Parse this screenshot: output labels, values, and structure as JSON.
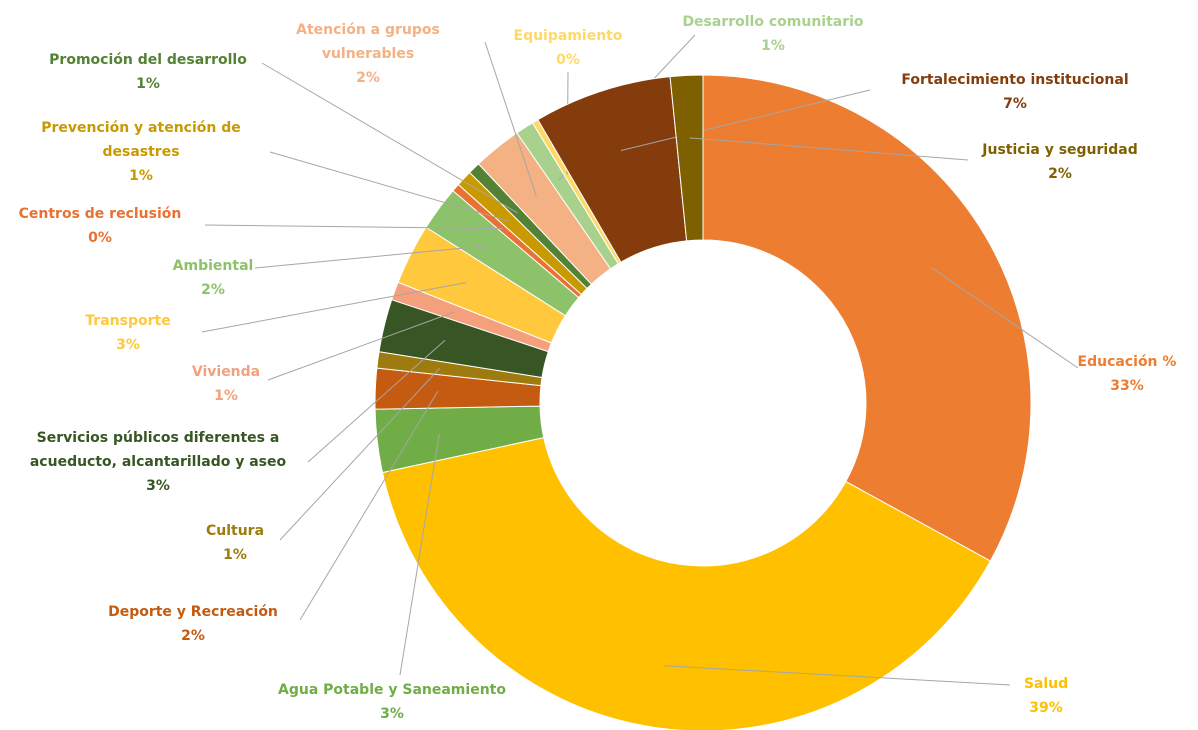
{
  "chart_data": {
    "type": "donut",
    "categories": [
      "Educación %",
      "Salud",
      "Agua Potable y Saneamiento",
      "Deporte y Recreación",
      "Cultura",
      "Servicios públicos diferentes a acueducto, alcantarillado y aseo",
      "Vivienda",
      "Transporte",
      "Ambiental",
      "Centros de reclusión",
      "Prevención y atención de desastres",
      "Promoción del desarrollo",
      "Atención a grupos vulnerables",
      "Desarrollo comunitario",
      "Equipamiento",
      "Fortalecimiento institucional",
      "Justicia y seguridad"
    ],
    "values": [
      33.0,
      38.6,
      3.1,
      2.0,
      0.8,
      2.6,
      0.9,
      3.0,
      2.2,
      0.4,
      0.8,
      0.6,
      2.4,
      0.9,
      0.3,
      6.8,
      1.6
    ],
    "value_labels": [
      "33%",
      "39%",
      "3%",
      "2%",
      "1%",
      "3%",
      "1%",
      "3%",
      "2%",
      "0%",
      "1%",
      "1%",
      "2%",
      "1%",
      "0%",
      "7%",
      "2%"
    ],
    "colors": [
      "#ED7D31",
      "#FFC000",
      "#70AD47",
      "#C55A11",
      "#9E7B0E",
      "#375623",
      "#F4A07C",
      "#FFC83D",
      "#8CC26A",
      "#E97132",
      "#C99A00",
      "#548235",
      "#F4B183",
      "#A9D18E",
      "#FFD966",
      "#843C0C",
      "#7F6000"
    ]
  }
}
